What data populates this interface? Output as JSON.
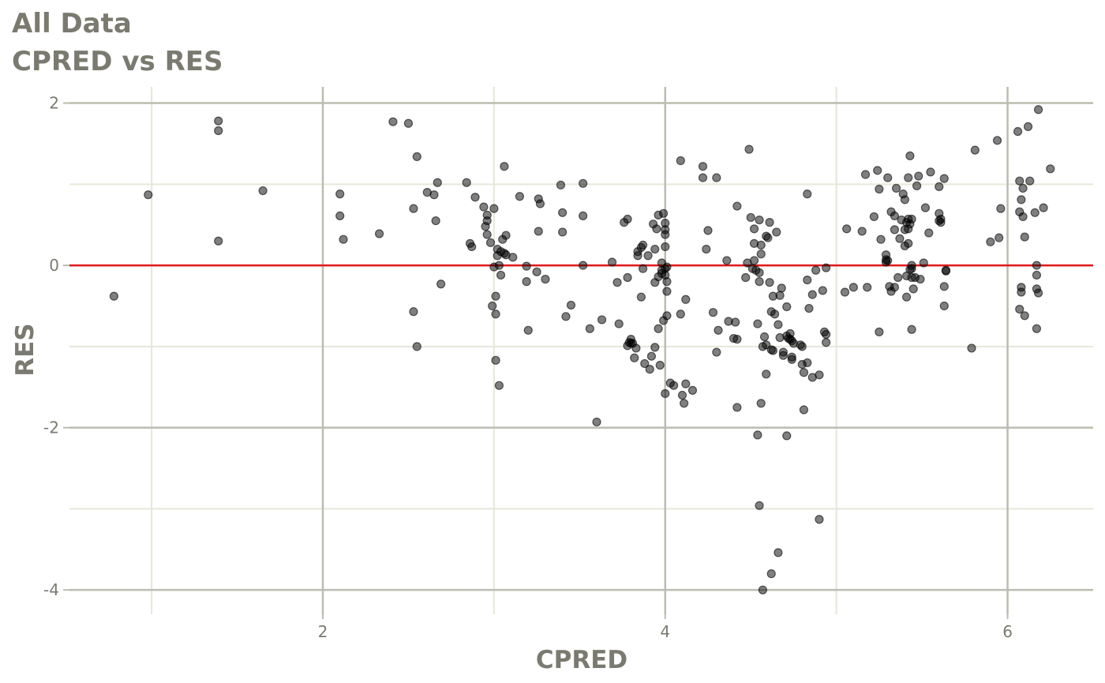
{
  "chart_data": {
    "type": "scatter",
    "title": "All Data",
    "subtitle": "CPRED vs RES",
    "xlabel": "CPRED",
    "ylabel": "RES",
    "xlim": [
      0.52,
      6.5
    ],
    "ylim": [
      -4.3,
      2.2
    ],
    "x_ticks": [
      2,
      4,
      6
    ],
    "y_ticks": [
      -4,
      -2,
      0,
      2
    ],
    "x_tick_labels": [
      "2",
      "4",
      "6"
    ],
    "y_tick_labels": [
      "-4",
      "-2",
      "0",
      "2"
    ],
    "grid": true,
    "reference_line": {
      "y": 0,
      "color": "#e31a1c"
    },
    "point_color": "#000000",
    "grid_major_color": "#bcbcb0",
    "grid_minor_color": "#e6e6da",
    "text_color": "#7a7a70",
    "points": [
      [
        0.78,
        -0.38
      ],
      [
        0.98,
        0.87
      ],
      [
        1.39,
        1.78
      ],
      [
        1.39,
        1.66
      ],
      [
        1.39,
        0.3
      ],
      [
        1.65,
        0.92
      ],
      [
        2.1,
        0.88
      ],
      [
        2.1,
        0.61
      ],
      [
        2.12,
        0.32
      ],
      [
        2.33,
        0.39
      ],
      [
        2.41,
        1.77
      ],
      [
        2.5,
        1.75
      ],
      [
        2.53,
        0.7
      ],
      [
        2.53,
        -0.57
      ],
      [
        2.55,
        1.34
      ],
      [
        2.55,
        -1.0
      ],
      [
        2.61,
        0.9
      ],
      [
        2.65,
        0.87
      ],
      [
        2.66,
        0.55
      ],
      [
        2.67,
        1.02
      ],
      [
        2.69,
        -0.23
      ],
      [
        2.84,
        1.02
      ],
      [
        2.86,
        0.27
      ],
      [
        2.87,
        0.23
      ],
      [
        2.89,
        0.84
      ],
      [
        2.94,
        0.72
      ],
      [
        2.95,
        0.48
      ],
      [
        2.96,
        0.55
      ],
      [
        2.96,
        0.62
      ],
      [
        2.96,
        0.38
      ],
      [
        2.98,
        0.28
      ],
      [
        2.99,
        -0.5
      ],
      [
        3.0,
        0.7
      ],
      [
        3.0,
        -0.02
      ],
      [
        3.01,
        -0.6
      ],
      [
        3.01,
        -0.38
      ],
      [
        3.01,
        -1.17
      ],
      [
        3.02,
        0.2
      ],
      [
        3.02,
        0.12
      ],
      [
        3.03,
        -1.48
      ],
      [
        3.03,
        0.0
      ],
      [
        3.04,
        -0.12
      ],
      [
        3.04,
        0.17
      ],
      [
        3.05,
        0.32
      ],
      [
        3.06,
        1.22
      ],
      [
        3.06,
        0.15
      ],
      [
        3.07,
        0.37
      ],
      [
        3.07,
        0.13
      ],
      [
        3.11,
        0.1
      ],
      [
        3.15,
        0.85
      ],
      [
        3.19,
        -0.2
      ],
      [
        3.19,
        -0.01
      ],
      [
        3.2,
        -0.8
      ],
      [
        3.25,
        -0.08
      ],
      [
        3.26,
        0.42
      ],
      [
        3.26,
        0.82
      ],
      [
        3.27,
        0.76
      ],
      [
        3.3,
        -0.17
      ],
      [
        3.39,
        0.99
      ],
      [
        3.4,
        0.65
      ],
      [
        3.4,
        0.41
      ],
      [
        3.42,
        -0.63
      ],
      [
        3.45,
        -0.49
      ],
      [
        3.52,
        1.01
      ],
      [
        3.52,
        0.61
      ],
      [
        3.52,
        0.0
      ],
      [
        3.56,
        -0.78
      ],
      [
        3.6,
        -1.93
      ],
      [
        3.63,
        -0.67
      ],
      [
        3.69,
        0.04
      ],
      [
        3.72,
        -0.21
      ],
      [
        3.73,
        -0.72
      ],
      [
        3.76,
        0.53
      ],
      [
        3.78,
        -0.15
      ],
      [
        3.78,
        0.57
      ],
      [
        3.78,
        -0.99
      ],
      [
        3.79,
        -0.95
      ],
      [
        3.8,
        -0.96
      ],
      [
        3.8,
        -0.91
      ],
      [
        3.81,
        -0.96
      ],
      [
        3.82,
        -1.14
      ],
      [
        3.83,
        -1.02
      ],
      [
        3.84,
        0.12
      ],
      [
        3.84,
        0.17
      ],
      [
        3.86,
        0.22
      ],
      [
        3.86,
        -0.39
      ],
      [
        3.87,
        0.25
      ],
      [
        3.87,
        -0.04
      ],
      [
        3.88,
        -1.21
      ],
      [
        3.9,
        0.12
      ],
      [
        3.91,
        -1.28
      ],
      [
        3.92,
        -1.12
      ],
      [
        3.93,
        0.51
      ],
      [
        3.94,
        -1.01
      ],
      [
        3.94,
        -0.21
      ],
      [
        3.94,
        0.2
      ],
      [
        3.95,
        0.45
      ],
      [
        3.96,
        -0.78
      ],
      [
        3.96,
        0.62
      ],
      [
        3.96,
        -0.14
      ],
      [
        3.97,
        -1.23
      ],
      [
        3.98,
        -0.06
      ],
      [
        3.98,
        0.03
      ],
      [
        3.98,
        -0.1
      ],
      [
        3.99,
        0.64
      ],
      [
        3.99,
        -0.68
      ],
      [
        4.0,
        -0.12
      ],
      [
        4.0,
        0.52
      ],
      [
        4.0,
        0.44
      ],
      [
        4.0,
        0.38
      ],
      [
        4.0,
        0.23
      ],
      [
        4.0,
        -0.04
      ],
      [
        4.01,
        -0.02
      ],
      [
        4.01,
        -0.2
      ],
      [
        4.01,
        -0.32
      ],
      [
        4.01,
        -0.62
      ],
      [
        4.0,
        -1.58
      ],
      [
        4.03,
        -1.45
      ],
      [
        4.05,
        -1.48
      ],
      [
        4.09,
        1.29
      ],
      [
        4.09,
        -0.6
      ],
      [
        4.1,
        -1.6
      ],
      [
        4.11,
        -1.7
      ],
      [
        4.12,
        -0.42
      ],
      [
        4.12,
        -1.46
      ],
      [
        4.16,
        -1.54
      ],
      [
        4.22,
        1.22
      ],
      [
        4.22,
        1.08
      ],
      [
        4.24,
        0.2
      ],
      [
        4.25,
        0.43
      ],
      [
        4.28,
        -0.58
      ],
      [
        4.3,
        1.08
      ],
      [
        4.3,
        -1.07
      ],
      [
        4.31,
        -0.8
      ],
      [
        4.36,
        0.06
      ],
      [
        4.37,
        -0.69
      ],
      [
        4.4,
        -0.9
      ],
      [
        4.41,
        -0.7
      ],
      [
        4.42,
        -0.91
      ],
      [
        4.42,
        -1.75
      ],
      [
        4.42,
        0.73
      ],
      [
        4.47,
        -0.15
      ],
      [
        4.48,
        0.03
      ],
      [
        4.49,
        1.43
      ],
      [
        4.5,
        0.59
      ],
      [
        4.51,
        -0.04
      ],
      [
        4.52,
        0.06
      ],
      [
        4.52,
        0.45
      ],
      [
        4.52,
        0.27
      ],
      [
        4.53,
        -0.06
      ],
      [
        4.54,
        -2.09
      ],
      [
        4.54,
        -0.72
      ],
      [
        4.55,
        0.56
      ],
      [
        4.55,
        -2.96
      ],
      [
        4.55,
        -0.09
      ],
      [
        4.55,
        -0.2
      ],
      [
        4.56,
        0.25
      ],
      [
        4.56,
        -1.7
      ],
      [
        4.56,
        0.14
      ],
      [
        4.57,
        -1.0
      ],
      [
        4.57,
        -4.0
      ],
      [
        4.58,
        -0.88
      ],
      [
        4.59,
        -0.98
      ],
      [
        4.59,
        -1.34
      ],
      [
        4.59,
        0.36
      ],
      [
        4.6,
        0.34
      ],
      [
        4.61,
        0.53
      ],
      [
        4.61,
        -0.21
      ],
      [
        4.62,
        -1.04
      ],
      [
        4.62,
        -0.57
      ],
      [
        4.62,
        -3.8
      ],
      [
        4.63,
        -1.05
      ],
      [
        4.63,
        -0.38
      ],
      [
        4.64,
        -0.6
      ],
      [
        4.65,
        0.41
      ],
      [
        4.66,
        -3.54
      ],
      [
        4.66,
        -0.73
      ],
      [
        4.67,
        -0.37
      ],
      [
        4.67,
        -0.89
      ],
      [
        4.68,
        -0.28
      ],
      [
        4.69,
        -1.11
      ],
      [
        4.69,
        -1.07
      ],
      [
        4.71,
        -2.1
      ],
      [
        4.71,
        -0.51
      ],
      [
        4.71,
        -0.87
      ],
      [
        4.72,
        -0.9
      ],
      [
        4.73,
        -0.91
      ],
      [
        4.73,
        -0.84
      ],
      [
        4.74,
        -1.13
      ],
      [
        4.74,
        -1.16
      ],
      [
        4.74,
        -0.93
      ],
      [
        4.75,
        -0.96
      ],
      [
        4.79,
        -0.98
      ],
      [
        4.8,
        -1.0
      ],
      [
        4.8,
        -1.22
      ],
      [
        4.81,
        -1.32
      ],
      [
        4.81,
        -1.78
      ],
      [
        4.83,
        0.88
      ],
      [
        4.83,
        -1.2
      ],
      [
        4.83,
        -0.18
      ],
      [
        4.84,
        -0.53
      ],
      [
        4.86,
        -1.38
      ],
      [
        4.86,
        -0.36
      ],
      [
        4.88,
        -0.06
      ],
      [
        4.9,
        -3.13
      ],
      [
        4.9,
        -1.35
      ],
      [
        4.92,
        -0.31
      ],
      [
        4.93,
        -0.82
      ],
      [
        4.94,
        -0.95
      ],
      [
        4.94,
        -0.85
      ],
      [
        4.94,
        -0.03
      ],
      [
        5.05,
        -0.33
      ],
      [
        5.06,
        0.45
      ],
      [
        5.1,
        -0.27
      ],
      [
        5.15,
        0.42
      ],
      [
        5.17,
        1.12
      ],
      [
        5.18,
        -0.27
      ],
      [
        5.22,
        0.6
      ],
      [
        5.24,
        1.17
      ],
      [
        5.25,
        0.94
      ],
      [
        5.25,
        -0.82
      ],
      [
        5.26,
        0.32
      ],
      [
        5.29,
        0.13
      ],
      [
        5.29,
        0.04
      ],
      [
        5.29,
        0.07
      ],
      [
        5.3,
        1.08
      ],
      [
        5.3,
        0.06
      ],
      [
        5.31,
        -0.26
      ],
      [
        5.32,
        0.66
      ],
      [
        5.32,
        -0.32
      ],
      [
        5.34,
        0.44
      ],
      [
        5.34,
        0.61
      ],
      [
        5.34,
        -0.27
      ],
      [
        5.35,
        0.95
      ],
      [
        5.36,
        -0.15
      ],
      [
        5.37,
        0.33
      ],
      [
        5.38,
        0.56
      ],
      [
        5.39,
        0.88
      ],
      [
        5.4,
        0.81
      ],
      [
        5.4,
        0.24
      ],
      [
        5.4,
        0.44
      ],
      [
        5.41,
        0.53
      ],
      [
        5.41,
        -0.39
      ],
      [
        5.41,
        -0.13
      ],
      [
        5.42,
        1.08
      ],
      [
        5.42,
        0.27
      ],
      [
        5.42,
        0.45
      ],
      [
        5.42,
        0.57
      ],
      [
        5.43,
        0.51
      ],
      [
        5.43,
        -0.05
      ],
      [
        5.43,
        1.35
      ],
      [
        5.44,
        -0.79
      ],
      [
        5.44,
        0.57
      ],
      [
        5.44,
        -0.04
      ],
      [
        5.44,
        0.0
      ],
      [
        5.44,
        -0.15
      ],
      [
        5.45,
        -0.29
      ],
      [
        5.46,
        -0.15
      ],
      [
        5.47,
        0.98
      ],
      [
        5.48,
        1.1
      ],
      [
        5.49,
        -0.17
      ],
      [
        5.51,
        0.03
      ],
      [
        5.52,
        0.71
      ],
      [
        5.54,
        0.4
      ],
      [
        5.55,
        1.15
      ],
      [
        5.6,
        0.97
      ],
      [
        5.6,
        0.55
      ],
      [
        5.6,
        0.64
      ],
      [
        5.61,
        0.57
      ],
      [
        5.61,
        0.53
      ],
      [
        5.63,
        1.07
      ],
      [
        5.63,
        -0.26
      ],
      [
        5.63,
        -0.5
      ],
      [
        5.64,
        -0.06
      ],
      [
        5.64,
        -0.07
      ],
      [
        5.79,
        -1.02
      ],
      [
        5.81,
        1.42
      ],
      [
        5.9,
        0.29
      ],
      [
        5.94,
        1.54
      ],
      [
        5.95,
        0.34
      ],
      [
        5.96,
        0.7
      ],
      [
        6.06,
        1.65
      ],
      [
        6.07,
        0.66
      ],
      [
        6.07,
        -0.54
      ],
      [
        6.07,
        1.04
      ],
      [
        6.08,
        0.81
      ],
      [
        6.08,
        -0.33
      ],
      [
        6.08,
        -0.27
      ],
      [
        6.09,
        0.95
      ],
      [
        6.09,
        0.6
      ],
      [
        6.1,
        0.35
      ],
      [
        6.1,
        -0.62
      ],
      [
        6.12,
        1.71
      ],
      [
        6.13,
        1.04
      ],
      [
        6.16,
        0.65
      ],
      [
        6.17,
        -0.12
      ],
      [
        6.17,
        0.0
      ],
      [
        6.17,
        -0.78
      ],
      [
        6.17,
        -0.29
      ],
      [
        6.18,
        1.92
      ],
      [
        6.18,
        -0.34
      ],
      [
        6.21,
        0.71
      ],
      [
        6.25,
        1.19
      ]
    ]
  }
}
